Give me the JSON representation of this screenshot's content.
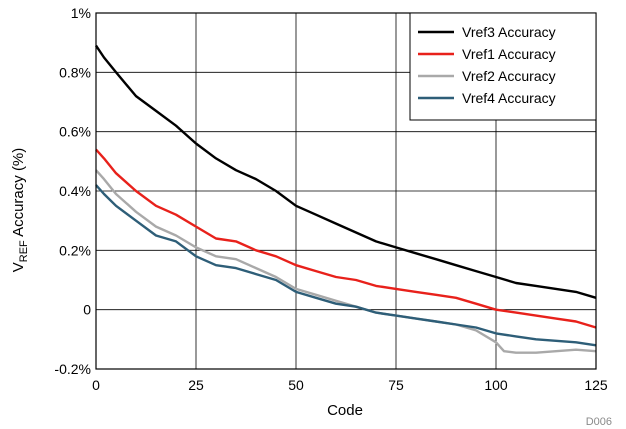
{
  "chart_data": {
    "type": "line",
    "xlabel": "Code",
    "ylabel_main": "V",
    "ylabel_sub": "REF",
    "ylabel_rest": " Accuracy (%)",
    "figure_id": "D006",
    "xlim": [
      0,
      125
    ],
    "ylim": [
      -0.2,
      1.0
    ],
    "x_ticks": [
      {
        "value": 0,
        "label": "0"
      },
      {
        "value": 25,
        "label": "25"
      },
      {
        "value": 50,
        "label": "50"
      },
      {
        "value": 75,
        "label": "75"
      },
      {
        "value": 100,
        "label": "100"
      },
      {
        "value": 125,
        "label": "125"
      }
    ],
    "y_ticks": [
      {
        "value": -0.2,
        "label": "-0.2%"
      },
      {
        "value": 0,
        "label": "0"
      },
      {
        "value": 0.2,
        "label": "0.2%"
      },
      {
        "value": 0.4,
        "label": "0.4%"
      },
      {
        "value": 0.6,
        "label": "0.6%"
      },
      {
        "value": 0.8,
        "label": "0.8%"
      },
      {
        "value": 1.0,
        "label": "1%"
      }
    ],
    "grid": true,
    "legend_position": "top-right",
    "series": [
      {
        "name": "Vref3 Accuracy",
        "color": "#000000",
        "x": [
          0,
          2,
          5,
          10,
          15,
          20,
          25,
          30,
          35,
          40,
          45,
          50,
          55,
          60,
          65,
          70,
          75,
          80,
          85,
          90,
          95,
          100,
          105,
          110,
          115,
          120,
          125
        ],
        "y": [
          0.89,
          0.85,
          0.8,
          0.72,
          0.67,
          0.62,
          0.56,
          0.51,
          0.47,
          0.44,
          0.4,
          0.35,
          0.32,
          0.29,
          0.26,
          0.23,
          0.21,
          0.19,
          0.17,
          0.15,
          0.13,
          0.11,
          0.09,
          0.08,
          0.07,
          0.06,
          0.04
        ]
      },
      {
        "name": "Vref1 Accuracy",
        "color": "#e8211b",
        "x": [
          0,
          2,
          5,
          10,
          15,
          20,
          25,
          30,
          35,
          40,
          45,
          50,
          55,
          60,
          65,
          70,
          75,
          80,
          85,
          90,
          95,
          100,
          105,
          110,
          115,
          120,
          125
        ],
        "y": [
          0.54,
          0.51,
          0.46,
          0.4,
          0.35,
          0.32,
          0.28,
          0.24,
          0.23,
          0.2,
          0.18,
          0.15,
          0.13,
          0.11,
          0.1,
          0.08,
          0.07,
          0.06,
          0.05,
          0.04,
          0.02,
          0.0,
          -0.01,
          -0.02,
          -0.03,
          -0.04,
          -0.06
        ]
      },
      {
        "name": "Vref2 Accuracy",
        "color": "#a9a9a9",
        "x": [
          0,
          2,
          5,
          10,
          15,
          20,
          25,
          30,
          35,
          40,
          45,
          50,
          55,
          60,
          65,
          70,
          75,
          80,
          85,
          90,
          95,
          100,
          102,
          105,
          110,
          115,
          120,
          125
        ],
        "y": [
          0.47,
          0.44,
          0.39,
          0.33,
          0.28,
          0.25,
          0.21,
          0.18,
          0.17,
          0.14,
          0.11,
          0.07,
          0.05,
          0.03,
          0.01,
          -0.01,
          -0.02,
          -0.03,
          -0.04,
          -0.05,
          -0.07,
          -0.11,
          -0.14,
          -0.145,
          -0.145,
          -0.14,
          -0.135,
          -0.14
        ]
      },
      {
        "name": "Vref4 Accuracy",
        "color": "#2e5e78",
        "x": [
          0,
          2,
          5,
          10,
          15,
          20,
          25,
          30,
          35,
          40,
          45,
          50,
          55,
          60,
          65,
          70,
          75,
          80,
          85,
          90,
          95,
          100,
          105,
          110,
          115,
          120,
          125
        ],
        "y": [
          0.42,
          0.39,
          0.35,
          0.3,
          0.25,
          0.23,
          0.18,
          0.15,
          0.14,
          0.12,
          0.1,
          0.06,
          0.04,
          0.02,
          0.01,
          -0.01,
          -0.02,
          -0.03,
          -0.04,
          -0.05,
          -0.06,
          -0.08,
          -0.09,
          -0.1,
          -0.105,
          -0.11,
          -0.12
        ]
      }
    ]
  }
}
